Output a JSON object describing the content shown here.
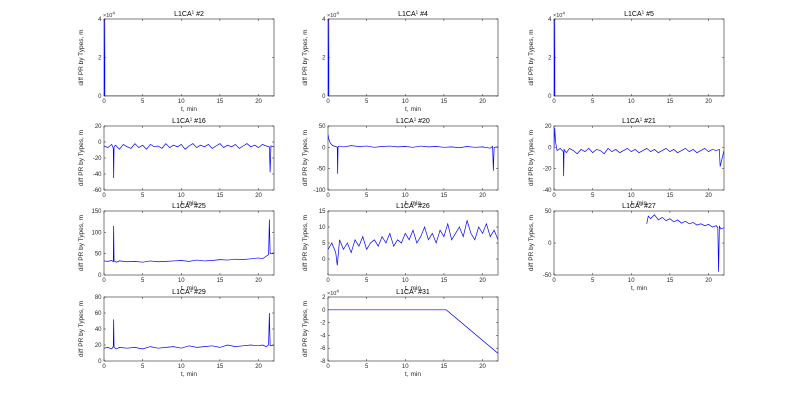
{
  "chart_data": [
    {
      "type": "line",
      "title": "L1CA",
      "title_superscript": "1",
      "title_suffix": " #2",
      "xlabel": "t, min",
      "ylabel": "diff PR by Types, m",
      "xlim": [
        0,
        22
      ],
      "ylim": [
        0,
        40000
      ],
      "exponent": "10",
      "exponent_power": "4",
      "xticks": [
        "0",
        "5",
        "10",
        "15",
        "20"
      ],
      "yticks": [
        "0",
        "2",
        "4"
      ],
      "series": [
        {
          "x": [
            0,
            0.1,
            0.11,
            22
          ],
          "y": [
            0,
            40000,
            0,
            0
          ]
        }
      ]
    },
    {
      "type": "line",
      "title": "L1CA",
      "title_superscript": "1",
      "title_suffix": " #4",
      "xlabel": "t, min",
      "ylabel": "diff PR by Types, m",
      "xlim": [
        0,
        22
      ],
      "ylim": [
        0,
        40000
      ],
      "exponent": "10",
      "exponent_power": "4",
      "xticks": [
        "0",
        "5",
        "10",
        "15",
        "20"
      ],
      "yticks": [
        "0",
        "2",
        "4"
      ],
      "series": [
        {
          "x": [
            0,
            0.1,
            0.11,
            22
          ],
          "y": [
            0,
            40000,
            0,
            0
          ]
        }
      ]
    },
    {
      "type": "line",
      "title": "L1CA",
      "title_superscript": "1",
      "title_suffix": " #5",
      "xlabel": "",
      "ylabel": "diff PR by Types, m",
      "xlim": [
        0,
        22
      ],
      "ylim": [
        0,
        40000
      ],
      "exponent": "10",
      "exponent_power": "4",
      "xticks": [
        "0",
        "5",
        "10",
        "15",
        "20"
      ],
      "yticks": [
        "0",
        "2",
        "4"
      ],
      "series": [
        {
          "x": [
            0,
            0.1,
            0.11,
            22
          ],
          "y": [
            0,
            40000,
            0,
            0
          ]
        }
      ]
    },
    {
      "type": "line",
      "title": "L1CA",
      "title_superscript": "1",
      "title_suffix": " #16",
      "xlabel": "t, min",
      "ylabel": "diff PR by Types, m",
      "xlim": [
        0,
        22
      ],
      "ylim": [
        -60,
        20
      ],
      "xticks": [
        "0",
        "5",
        "10",
        "15",
        "20"
      ],
      "yticks": [
        "-60",
        "-40",
        "-20",
        "0",
        "20"
      ],
      "series": [
        {
          "x": [
            0,
            0.5,
            1.0,
            1.2,
            1.25,
            1.3,
            1.5,
            2,
            2.5,
            3,
            3.5,
            4,
            4.5,
            5,
            5.5,
            6,
            6.5,
            7,
            7.5,
            8,
            8.5,
            9,
            9.5,
            10,
            10.5,
            11,
            11.5,
            12,
            12.5,
            13,
            13.5,
            14,
            14.5,
            15,
            15.5,
            16,
            16.5,
            17,
            17.5,
            18,
            18.5,
            19,
            19.5,
            20,
            20.5,
            21,
            21.4,
            21.5,
            21.6,
            22
          ],
          "y": [
            -5,
            -7,
            -3,
            -8,
            -45,
            -6,
            -4,
            -9,
            -3,
            -6,
            -8,
            -2,
            -7,
            -4,
            -9,
            -3,
            -6,
            -5,
            -8,
            -2,
            -7,
            -4,
            -6,
            -3,
            -9,
            -5,
            -2,
            -7,
            -4,
            -6,
            -3,
            -8,
            -5,
            -2,
            -7,
            -4,
            -6,
            -3,
            -8,
            -5,
            -2,
            -6,
            -4,
            -7,
            -3,
            -5,
            -6,
            -38,
            -5,
            -6
          ]
        }
      ]
    },
    {
      "type": "line",
      "title": "L1CA",
      "title_superscript": "1",
      "title_suffix": " #20",
      "xlabel": "t, min",
      "ylabel": "diff PR by Types, m",
      "xlim": [
        0,
        22
      ],
      "ylim": [
        -100,
        50
      ],
      "xticks": [
        "0",
        "5",
        "10",
        "15",
        "20"
      ],
      "yticks": [
        "-100",
        "-50",
        "0",
        "50"
      ],
      "series": [
        {
          "x": [
            0,
            0.1,
            0.3,
            0.6,
            1.0,
            1.2,
            1.25,
            1.3,
            1.5,
            2,
            3,
            4,
            5,
            6,
            7,
            8,
            9,
            10,
            11,
            12,
            13,
            14,
            15,
            16,
            17,
            18,
            19,
            20,
            21,
            21.3,
            21.4,
            21.5,
            22
          ],
          "y": [
            30,
            20,
            10,
            4,
            2,
            0,
            -62,
            2,
            3,
            1,
            4,
            2,
            3,
            0,
            2,
            3,
            1,
            2,
            0,
            3,
            1,
            2,
            0,
            1,
            -1,
            2,
            0,
            1,
            -2,
            2,
            -55,
            0,
            1
          ]
        }
      ]
    },
    {
      "type": "line",
      "title": "L1CA",
      "title_superscript": "1",
      "title_suffix": " #21",
      "xlabel": "t, min",
      "ylabel": "diff PR by Types, m",
      "xlim": [
        0,
        22
      ],
      "ylim": [
        -40,
        20
      ],
      "xticks": [
        "0",
        "5",
        "10",
        "15",
        "20"
      ],
      "yticks": [
        "-40",
        "-20",
        "0",
        "20"
      ],
      "series": [
        {
          "x": [
            0,
            0.1,
            0.2,
            0.4,
            0.8,
            1.2,
            1.25,
            1.3,
            1.6,
            2,
            2.5,
            3,
            3.5,
            4,
            4.5,
            5,
            5.5,
            6,
            6.5,
            7,
            7.5,
            8,
            8.5,
            9,
            9.5,
            10,
            10.5,
            11,
            11.5,
            12,
            12.5,
            13,
            13.5,
            14,
            14.5,
            15,
            15.5,
            16,
            16.5,
            17,
            17.5,
            18,
            18.5,
            19,
            19.5,
            20,
            20.5,
            21,
            21.4,
            21.5,
            22
          ],
          "y": [
            0,
            18,
            5,
            -3,
            -1,
            -4,
            -27,
            -2,
            -5,
            -1,
            -3,
            -6,
            -2,
            -4,
            -1,
            -5,
            -2,
            -3,
            -6,
            -1,
            -4,
            -2,
            -5,
            -3,
            -1,
            -4,
            -2,
            -5,
            -3,
            -1,
            -4,
            -2,
            -5,
            -3,
            -1,
            -4,
            -2,
            -5,
            -3,
            -1,
            -4,
            -2,
            -5,
            -3,
            -1,
            -4,
            -2,
            -3,
            -2,
            -18,
            -3
          ]
        }
      ]
    },
    {
      "type": "line",
      "title": "L1CA",
      "title_superscript": "1",
      "title_suffix": " #25",
      "xlabel": "t, min",
      "ylabel": "diff PR by Types, m",
      "xlim": [
        0,
        22
      ],
      "ylim": [
        0,
        150
      ],
      "xticks": [
        "0",
        "5",
        "10",
        "15",
        "20"
      ],
      "yticks": [
        "0",
        "50",
        "100",
        "150"
      ],
      "series": [
        {
          "x": [
            0,
            0.5,
            1.0,
            1.2,
            1.25,
            1.3,
            1.6,
            2,
            3,
            4,
            5,
            6,
            7,
            8,
            9,
            10,
            11,
            12,
            13,
            14,
            15,
            16,
            17,
            18,
            19,
            20,
            20.5,
            21,
            21.3,
            21.4,
            21.5,
            22
          ],
          "y": [
            33,
            32,
            34,
            31,
            115,
            33,
            30,
            33,
            31,
            32,
            30,
            33,
            31,
            32,
            33,
            34,
            32,
            35,
            33,
            34,
            36,
            35,
            37,
            36,
            38,
            40,
            38,
            44,
            48,
            130,
            50,
            52
          ]
        }
      ]
    },
    {
      "type": "line",
      "title": "L1CA",
      "title_superscript": "1",
      "title_suffix": " #26",
      "xlabel": "t, min",
      "ylabel": "diff PR by Types, m",
      "xlim": [
        0,
        22
      ],
      "ylim": [
        -5,
        15
      ],
      "xticks": [
        "0",
        "5",
        "10",
        "15",
        "20"
      ],
      "yticks": [
        "0",
        "5",
        "10",
        "15"
      ],
      "series": [
        {
          "x": [
            0,
            0.5,
            1.0,
            1.2,
            1.5,
            2,
            2.5,
            3,
            3.5,
            4,
            4.5,
            5,
            5.5,
            6,
            6.5,
            7,
            7.5,
            8,
            8.5,
            9,
            9.5,
            10,
            10.5,
            11,
            11.5,
            12,
            12.5,
            13,
            13.5,
            14,
            14.5,
            15,
            15.5,
            16,
            16.5,
            17,
            17.5,
            18,
            18.5,
            19,
            19.5,
            20,
            20.5,
            21,
            21.5,
            22
          ],
          "y": [
            3,
            5,
            2,
            -2,
            6,
            3,
            5,
            2,
            6,
            4,
            7,
            3,
            5,
            6,
            4,
            7,
            5,
            8,
            4,
            6,
            5,
            8,
            6,
            9,
            5,
            7,
            10,
            6,
            8,
            5,
            9,
            7,
            11,
            6,
            8,
            10,
            7,
            12,
            8,
            6,
            10,
            8,
            11,
            7,
            9,
            6
          ]
        }
      ]
    },
    {
      "type": "line",
      "title": "L1CA",
      "title_superscript": "1",
      "title_suffix": " #27",
      "xlabel": "t, min",
      "ylabel": "diff PR by Types, m",
      "xlim": [
        0,
        22
      ],
      "ylim": [
        -50,
        50
      ],
      "xticks": [
        "0",
        "5",
        "10",
        "15",
        "20"
      ],
      "yticks": [
        "-50",
        "0",
        "50"
      ],
      "series": [
        {
          "x": [
            12.0,
            12.2,
            12.5,
            13,
            13.5,
            14,
            14.5,
            15,
            15.5,
            16,
            16.5,
            17,
            17.5,
            18,
            18.5,
            19,
            19.5,
            20,
            20.5,
            21,
            21.2,
            21.3,
            21.4,
            21.6,
            22
          ],
          "y": [
            30,
            42,
            38,
            44,
            36,
            40,
            35,
            38,
            33,
            36,
            31,
            34,
            30,
            32,
            28,
            30,
            27,
            29,
            25,
            27,
            24,
            -45,
            26,
            22,
            24
          ]
        }
      ]
    },
    {
      "type": "line",
      "title": "L1CA",
      "title_superscript": "1",
      "title_suffix": " #29",
      "xlabel": "t, min",
      "ylabel": "diff PR by Types, m",
      "xlim": [
        0,
        22
      ],
      "ylim": [
        0,
        80
      ],
      "xticks": [
        "0",
        "5",
        "10",
        "15",
        "20"
      ],
      "yticks": [
        "0",
        "20",
        "40",
        "60",
        "80"
      ],
      "series": [
        {
          "x": [
            0,
            0.5,
            1.0,
            1.2,
            1.25,
            1.3,
            1.6,
            2,
            3,
            4,
            5,
            6,
            7,
            8,
            9,
            10,
            11,
            12,
            13,
            14,
            15,
            16,
            17,
            18,
            19,
            20,
            20.5,
            21,
            21.3,
            21.4,
            21.5,
            22
          ],
          "y": [
            16,
            17,
            15,
            18,
            52,
            17,
            15,
            17,
            16,
            17,
            15,
            18,
            16,
            17,
            18,
            16,
            19,
            17,
            18,
            19,
            17,
            20,
            18,
            19,
            20,
            19,
            20,
            18,
            20,
            60,
            19,
            20
          ]
        }
      ]
    },
    {
      "type": "line",
      "title": "L1CA",
      "title_superscript": "1",
      "title_suffix": " #31",
      "xlabel": "t, min",
      "ylabel": "diff PR by Types, m",
      "xlim": [
        0,
        22
      ],
      "ylim": [
        -80000,
        20000
      ],
      "exponent": "10",
      "exponent_power": "4",
      "xticks": [
        "0",
        "5",
        "10",
        "15",
        "20"
      ],
      "yticks": [
        "-8",
        "-6",
        "-4",
        "-2",
        "0",
        "2"
      ],
      "series": [
        {
          "x": [
            0,
            15.3,
            22
          ],
          "y": [
            0,
            0,
            -68000
          ]
        }
      ]
    }
  ],
  "style": {
    "line_color": "#0000ff",
    "axis_color": "#262626",
    "background": "#ffffff"
  }
}
